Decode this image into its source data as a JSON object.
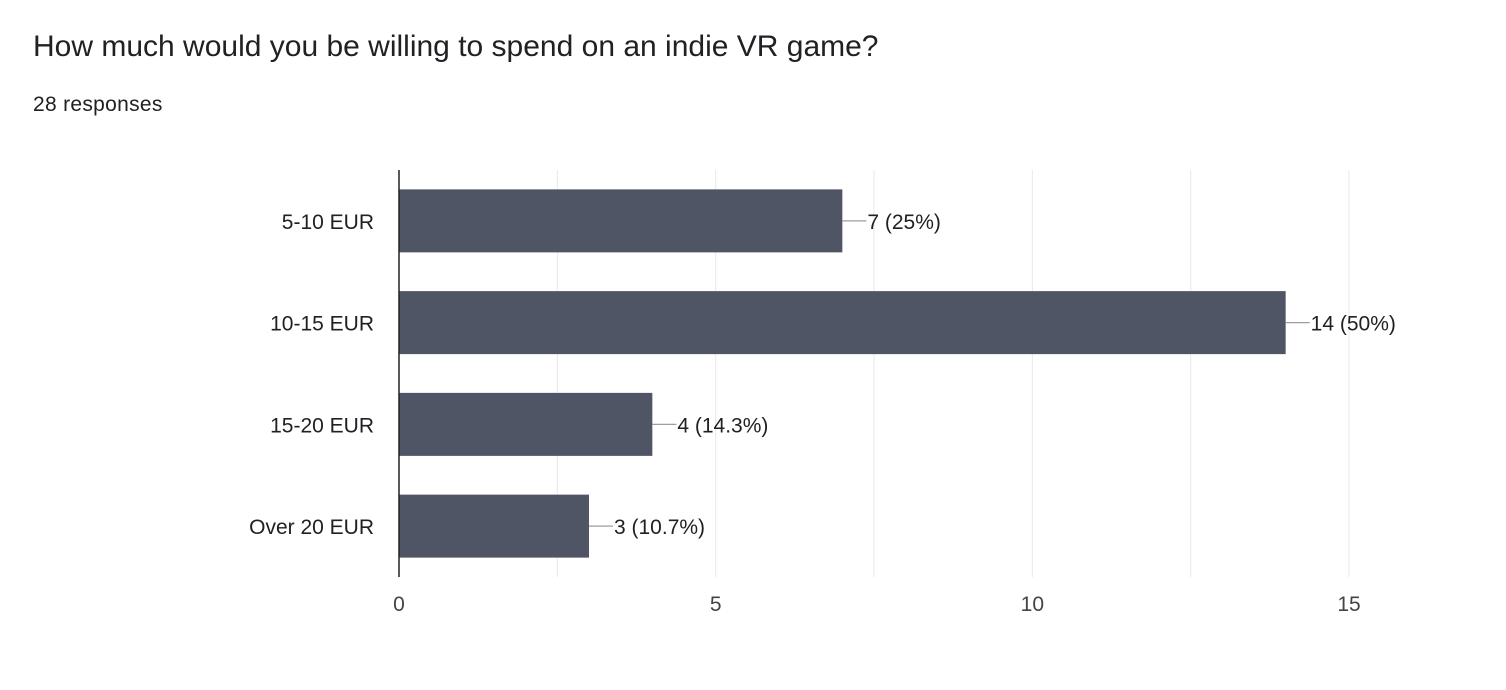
{
  "header": {
    "title": "How much would you be willing to spend on an indie VR game?",
    "subtitle": "28 responses"
  },
  "colors": {
    "bar": "#4f5565",
    "grid": "#e8e8e8",
    "axis": "#222222",
    "connector": "#9e9e9e",
    "text": "#202124",
    "tick_text": "#444444"
  },
  "chart_data": {
    "type": "bar",
    "orientation": "horizontal",
    "categories": [
      "5-10 EUR",
      "10-15 EUR",
      "15-20 EUR",
      "Over 20 EUR"
    ],
    "values": [
      7,
      14,
      4,
      3
    ],
    "data_labels": [
      "7 (25%)",
      "14 (50%)",
      "4 (14.3%)",
      "3 (10.7%)"
    ],
    "xlim": [
      0,
      15
    ],
    "xticks": [
      0,
      5,
      10,
      15
    ],
    "grid": true
  }
}
